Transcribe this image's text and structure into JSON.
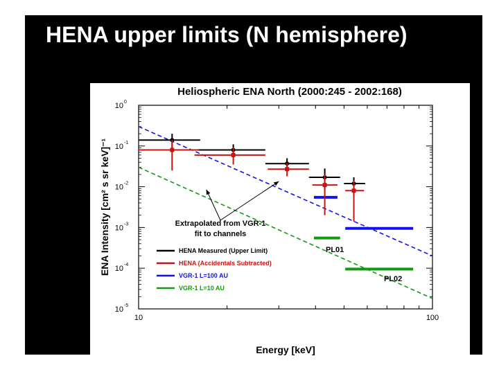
{
  "slide": {
    "title": "HENA upper limits (N hemisphere)"
  },
  "chart_data": {
    "type": "scatter",
    "title": "Heliospheric ENA North (2000:245 - 2002:168)",
    "xlabel": "Energy [keV]",
    "ylabel": "ENA Intensity [cm² s sr keV]⁻¹",
    "xscale": "log",
    "yscale": "log",
    "xlim": [
      10,
      100
    ],
    "ylim": [
      1e-05,
      1
    ],
    "x_ticks": [
      "10",
      "100"
    ],
    "y_ticks": [
      {
        "value": 1,
        "base": "10",
        "exp": "0"
      },
      {
        "value": 0.1,
        "base": "10",
        "exp": "-1"
      },
      {
        "value": 0.01,
        "base": "10",
        "exp": "-2"
      },
      {
        "value": 0.001,
        "base": "10",
        "exp": "-3"
      },
      {
        "value": 0.0001,
        "base": "10",
        "exp": "-4"
      },
      {
        "value": 1e-05,
        "base": "10",
        "exp": "-5"
      }
    ],
    "colors": {
      "black": "#000000",
      "red": "#cc1111",
      "blue": "#1111ee",
      "green": "#119911"
    },
    "series": [
      {
        "name": "HENA Measured (Upper Limit)",
        "color": "#000000",
        "points": [
          {
            "x": 13,
            "y": 0.14,
            "xmin": 10,
            "xmax": 16.2,
            "ylo": 0.08,
            "yhi": 0.2
          },
          {
            "x": 21,
            "y": 0.08,
            "xmin": 15.5,
            "xmax": 27,
            "ylo": 0.05,
            "yhi": 0.11
          },
          {
            "x": 32,
            "y": 0.037,
            "xmin": 27,
            "xmax": 38,
            "ylo": 0.025,
            "yhi": 0.05
          },
          {
            "x": 43,
            "y": 0.017,
            "xmin": 38,
            "xmax": 48.5,
            "ylo": 0.008,
            "yhi": 0.028
          },
          {
            "x": 54,
            "y": 0.012,
            "xmin": 50,
            "xmax": 59,
            "ylo": 0.006,
            "yhi": 0.017
          }
        ]
      },
      {
        "name": "HENA (Accidentals Subtracted)",
        "color": "#cc1111",
        "points": [
          {
            "x": 13,
            "y": 0.08,
            "xmin": 10,
            "xmax": 16,
            "ylo": 0.025,
            "yhi": 0.14
          },
          {
            "x": 21,
            "y": 0.06,
            "xmin": 15.5,
            "xmax": 27,
            "ylo": 0.035,
            "yhi": 0.09
          },
          {
            "x": 32,
            "y": 0.027,
            "xmin": 27.5,
            "xmax": 38,
            "ylo": 0.018,
            "yhi": 0.038
          },
          {
            "x": 43,
            "y": 0.011,
            "xmin": 39,
            "xmax": 47.5,
            "ylo": 0.002,
            "yhi": 0.02
          },
          {
            "x": 54,
            "y": 0.008,
            "xmin": 50.5,
            "xmax": 58.5,
            "ylo": 0.0014,
            "yhi": 0.014
          }
        ]
      },
      {
        "name": "VGR-1 L=100 AU",
        "color": "#1111ee",
        "segments": [
          {
            "x1": 39.5,
            "x2": 47.5,
            "y": 0.0055
          },
          {
            "x1": 50.5,
            "x2": 86,
            "y": 0.00095
          }
        ],
        "fit_line": {
          "x1": 10,
          "y1": 0.3,
          "x2": 100,
          "y2": 0.0002
        }
      },
      {
        "name": "VGR-1 L=10 AU",
        "color": "#119911",
        "segments": [
          {
            "x1": 39.5,
            "x2": 48.5,
            "y": 0.00055
          },
          {
            "x1": 50.5,
            "x2": 86,
            "y": 9.5e-05
          }
        ],
        "fit_line": {
          "x1": 10,
          "y1": 0.03,
          "x2": 100,
          "y2": 1.8e-05
        }
      }
    ],
    "annotations": {
      "extrapolated_line1": "Extrapolated from VGR-1",
      "extrapolated_line2": "fit to channels",
      "pl01": "PL01",
      "pl02": "PL02"
    },
    "legend": {
      "placement": "bottom-left"
    }
  }
}
